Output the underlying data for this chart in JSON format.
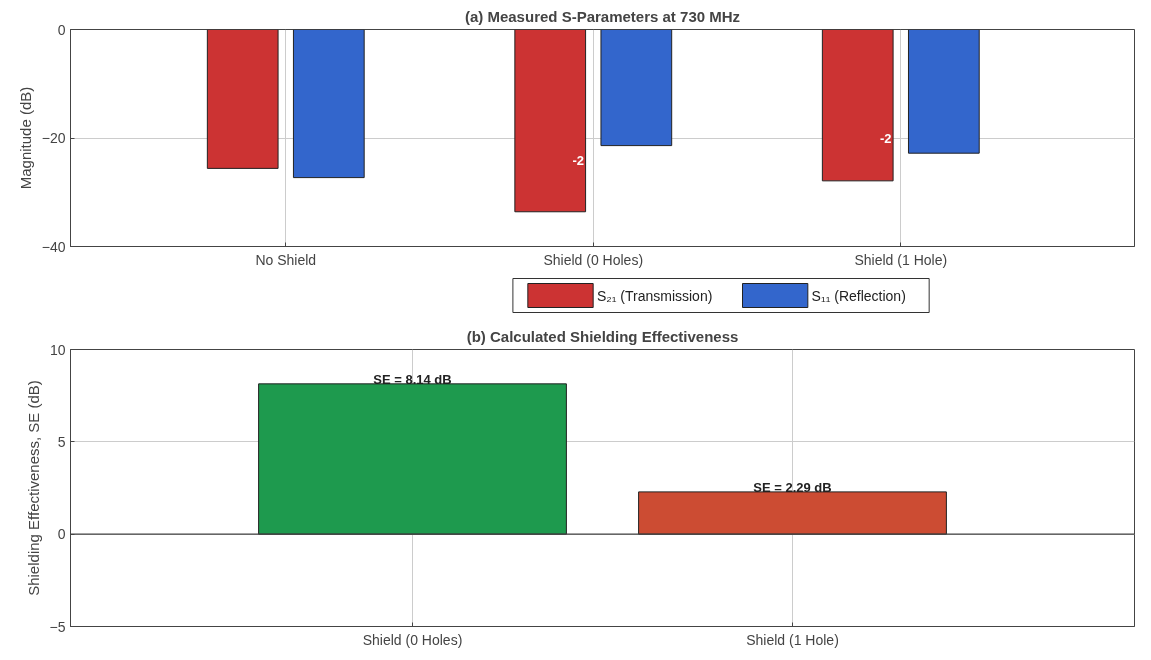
{
  "chart_data": [
    {
      "type": "bar",
      "title": "(a) Measured S-Parameters at 730 MHz",
      "ylabel": "Magnitude (dB)",
      "categories": [
        "No Shield",
        "Shield (0 Holes)",
        "Shield (1 Hole)"
      ],
      "series": [
        {
          "name": "S₂₁ (Transmission)",
          "color": "#cc3333",
          "values": [
            -25.6,
            -33.6,
            -27.9
          ]
        },
        {
          "name": "S₁₁ (Reflection)",
          "color": "#3366cc",
          "values": [
            -27.3,
            -21.4,
            -22.8
          ]
        }
      ],
      "annotations": [
        "-2",
        "-2"
      ],
      "ylim": [
        -40,
        0
      ],
      "yticks": [
        -40,
        -20,
        0
      ],
      "grid": true,
      "legend": "bottom"
    },
    {
      "type": "bar",
      "title": "(b) Calculated Shielding Effectiveness",
      "ylabel": "Shielding Effectiveness, SE (dB)",
      "categories": [
        "Shield (0 Holes)",
        "Shield (1 Hole)"
      ],
      "values": [
        8.14,
        2.29
      ],
      "colors": [
        "#1e9a4e",
        "#cc4c33"
      ],
      "value_labels": [
        "SE = 8.14 dB",
        "SE = 2.29 dB"
      ],
      "ylim": [
        -5,
        10
      ],
      "yticks": [
        -5,
        0,
        5,
        10
      ],
      "grid": true
    }
  ]
}
